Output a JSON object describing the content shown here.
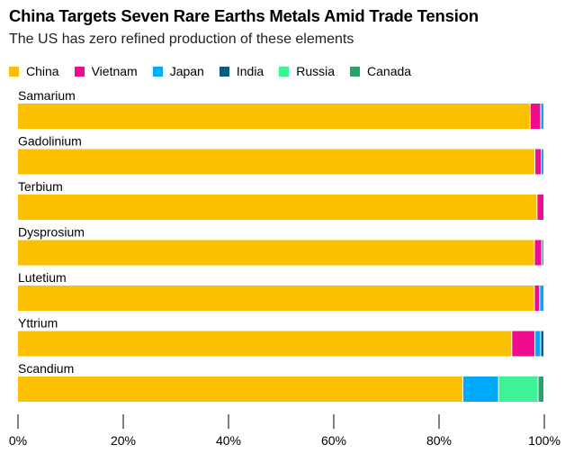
{
  "chart_data": {
    "type": "bar",
    "orientation": "horizontal",
    "stacked": true,
    "title": "China Targets Seven Rare Earths Metals Amid Trade Tension",
    "subtitle": "The US has zero refined production of these elements",
    "categories": [
      "Samarium",
      "Gadolinium",
      "Terbium",
      "Dysprosium",
      "Lutetium",
      "Yttrium",
      "Scandium"
    ],
    "series": [
      {
        "name": "China",
        "color": "#fcc000",
        "values": [
          97.4,
          98.3,
          98.7,
          98.2,
          98.2,
          93.9,
          84.6
        ]
      },
      {
        "name": "Vietnam",
        "color": "#ef0d8e",
        "values": [
          2.0,
          1.2,
          1.3,
          1.4,
          1.0,
          4.4,
          0
        ]
      },
      {
        "name": "Japan",
        "color": "#00aaff",
        "values": [
          0.6,
          0.5,
          0,
          0.4,
          0.8,
          1.1,
          6.8
        ]
      },
      {
        "name": "India",
        "color": "#0a5c7a",
        "values": [
          0,
          0,
          0,
          0,
          0,
          0.6,
          0
        ]
      },
      {
        "name": "Russia",
        "color": "#3ef395",
        "values": [
          0,
          0,
          0,
          0,
          0,
          0,
          7.5
        ]
      },
      {
        "name": "Canada",
        "color": "#2aa36a",
        "values": [
          0,
          0,
          0,
          0,
          0,
          0,
          1.1
        ]
      }
    ],
    "xlim": [
      0,
      100
    ],
    "xticks": [
      "0%",
      "20%",
      "40%",
      "60%",
      "80%",
      "100%"
    ],
    "legend_position": "top-left",
    "grid": false
  }
}
